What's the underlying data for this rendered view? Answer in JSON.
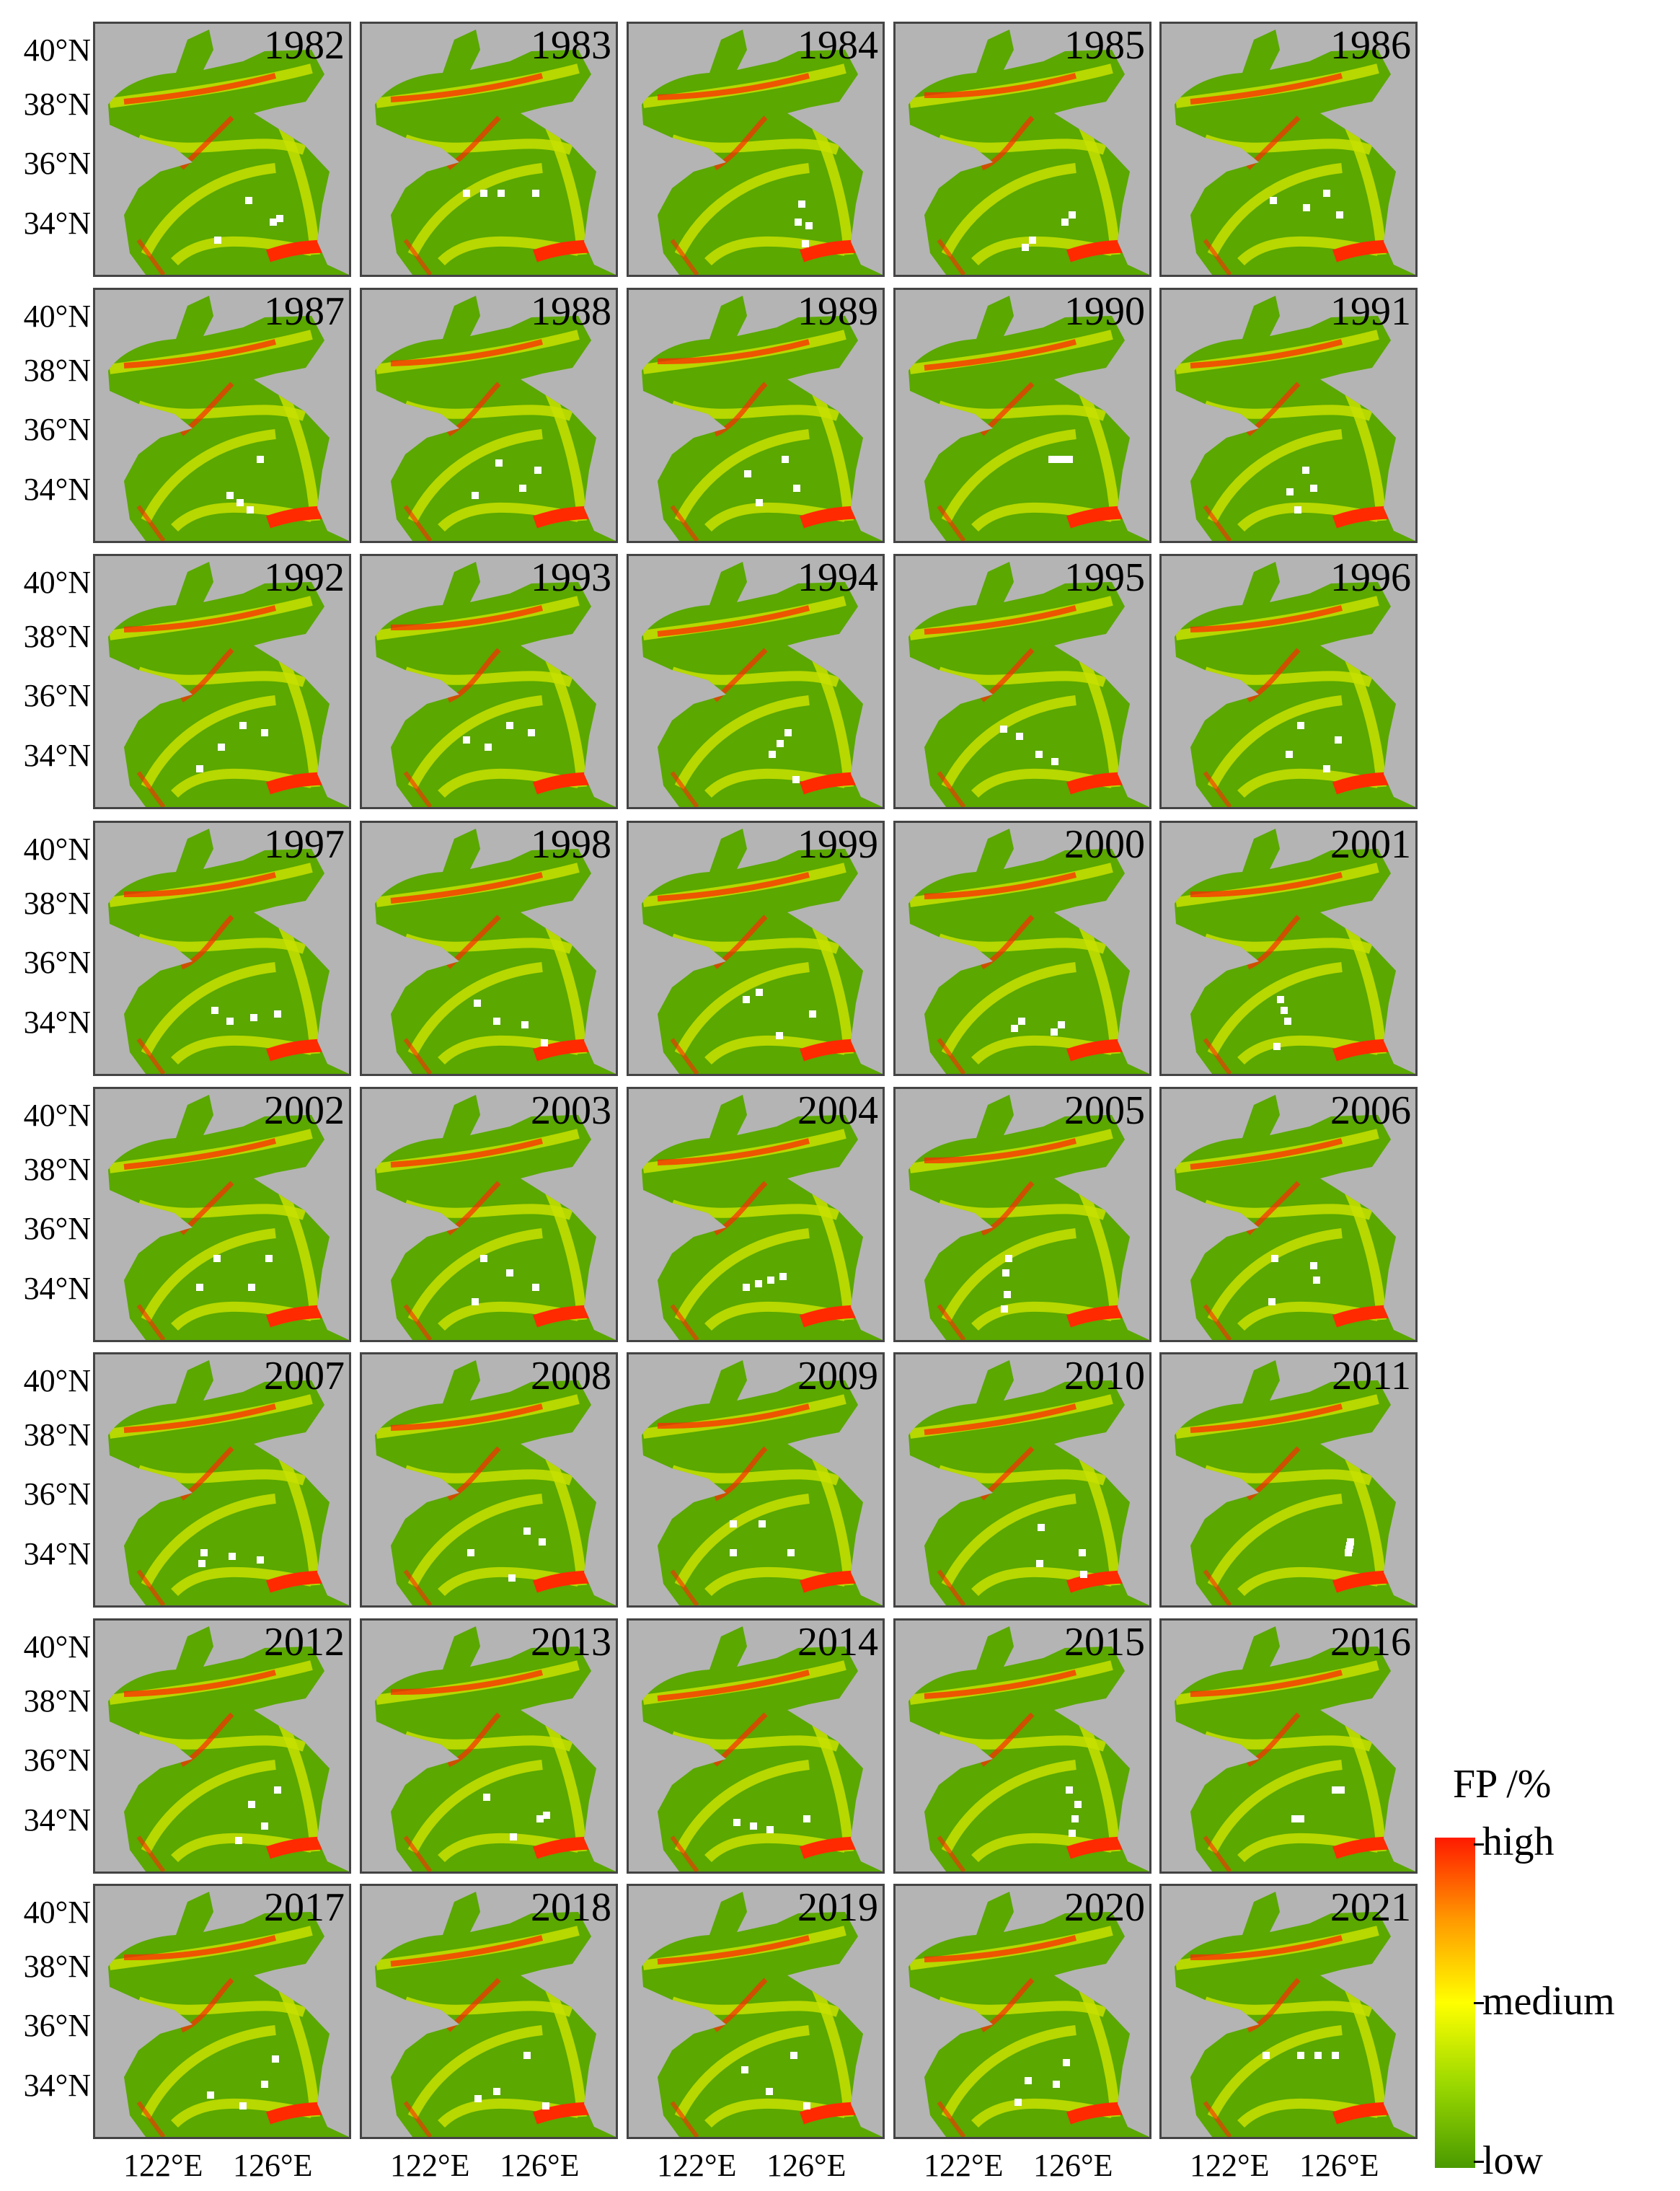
{
  "years": [
    "1982",
    "1983",
    "1984",
    "1985",
    "1986",
    "1987",
    "1988",
    "1989",
    "1990",
    "1991",
    "1992",
    "1993",
    "1994",
    "1995",
    "1996",
    "1997",
    "1998",
    "1999",
    "2000",
    "2001",
    "2002",
    "2003",
    "2004",
    "2005",
    "2006",
    "2007",
    "2008",
    "2009",
    "2010",
    "2011",
    "2012",
    "2013",
    "2014",
    "2015",
    "2016",
    "2017",
    "2018",
    "2019",
    "2020",
    "2021"
  ],
  "latitude_labels": [
    "40°N",
    "38°N",
    "36°N",
    "34°N"
  ],
  "longitude_labels": [
    "122°E",
    "126°E"
  ],
  "colorbar": {
    "title": "FP /%",
    "labels": [
      "high",
      "medium",
      "low"
    ],
    "colors": [
      "#ff1a00",
      "#ff9a00",
      "#ffff00",
      "#9ad800",
      "#4a9a00"
    ]
  },
  "colors": {
    "land": "#b4b4b4",
    "sea_low": "#5aa800",
    "sea_mid": "#c8e000",
    "sea_high": "#ff2a00",
    "no_data": "#ffffff"
  }
}
